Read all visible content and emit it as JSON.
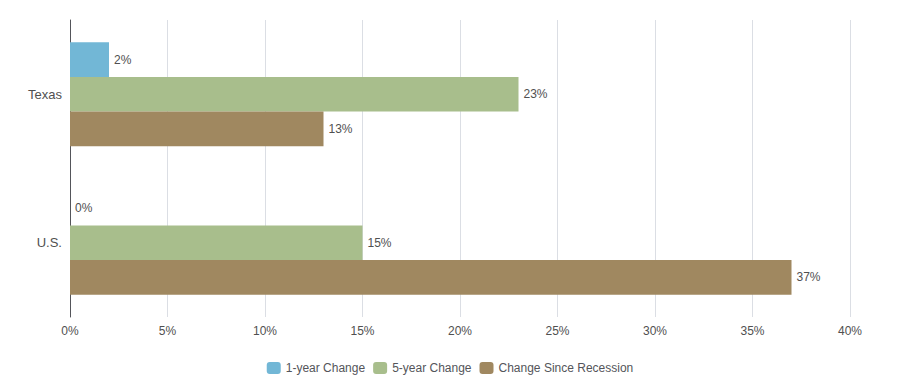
{
  "chart_data": {
    "type": "bar",
    "orientation": "horizontal",
    "categories": [
      "Texas",
      "U.S."
    ],
    "series": [
      {
        "name": "1-year Change",
        "color": "#72b7d6",
        "values": [
          2,
          0
        ],
        "value_labels": [
          "2%",
          "0%"
        ]
      },
      {
        "name": "5-year Change",
        "color": "#a8be8c",
        "values": [
          23,
          15
        ],
        "value_labels": [
          "23%",
          "15%"
        ]
      },
      {
        "name": "Change Since Recession",
        "color": "#a08860",
        "values": [
          13,
          37
        ],
        "value_labels": [
          "13%",
          "37%"
        ]
      }
    ],
    "xlim": [
      0,
      40
    ],
    "xticks": [
      {
        "value": 0,
        "label": "0%"
      },
      {
        "value": 5,
        "label": "5%"
      },
      {
        "value": 10,
        "label": "10%"
      },
      {
        "value": 15,
        "label": "15%"
      },
      {
        "value": 20,
        "label": "20%"
      },
      {
        "value": 25,
        "label": "25%"
      },
      {
        "value": 30,
        "label": "30%"
      },
      {
        "value": 35,
        "label": "35%"
      },
      {
        "value": 40,
        "label": "40%"
      }
    ],
    "grid": true,
    "legend": "bottom",
    "data_labels": true
  }
}
